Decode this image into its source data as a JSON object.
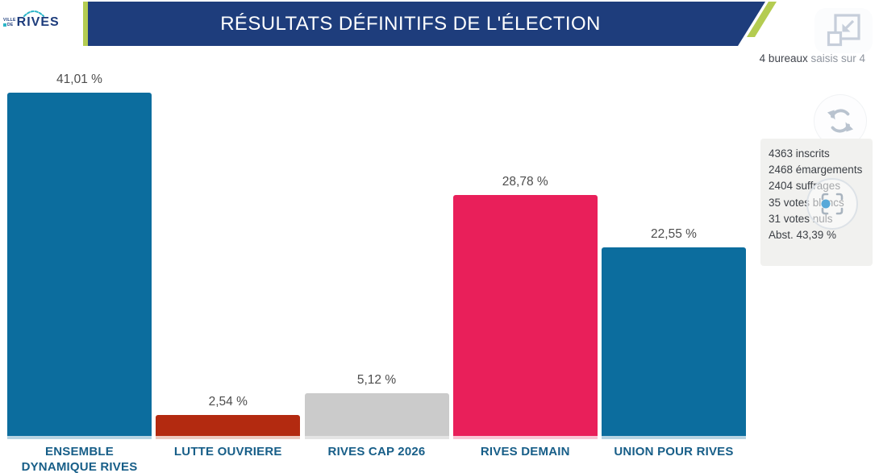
{
  "header": {
    "logo": {
      "ville": "VILLE",
      "de": "DE",
      "city": "RIVES"
    },
    "title": "RÉSULTATS DÉFINITIFS DE L'ÉLECTION",
    "bureaux_count": "4 bureaux",
    "bureaux_rest": " saisis sur 4"
  },
  "side_panel": {
    "stats": [
      "4363 inscrits",
      "2468 émargements",
      "2404 suffrages",
      "35 votes blancs",
      "31 votes nuls",
      "Abst. 43,39 %"
    ]
  },
  "icons": {
    "collapse": "exit-fullscreen-arrow-to-corner",
    "refresh": "sync-circular-arrows",
    "locate": "viewfinder-with-blue-dot"
  },
  "colors": {
    "banner_navy": "#1e3d7c",
    "accent_green": "#b4cc51",
    "category_label_blue": "#175e88",
    "stats_box_bg": "#f1f1ef",
    "icon_gray": "#c6ceda"
  },
  "chart_data": {
    "type": "bar",
    "title": "RÉSULTATS DÉFINITIFS DE L'ÉLECTION",
    "categories": [
      "ENSEMBLE DYNAMIQUE RIVES",
      "LUTTE OUVRIERE",
      "RIVES CAP 2026",
      "RIVES DEMAIN",
      "UNION POUR RIVES"
    ],
    "category_labels": [
      "ENSEMBLE\nDYNAMIQUE RIVES",
      "LUTTE OUVRIERE",
      "RIVES CAP 2026",
      "RIVES DEMAIN",
      "UNION POUR RIVES"
    ],
    "values": [
      41.01,
      2.54,
      5.12,
      28.78,
      22.55
    ],
    "value_labels": [
      "41,01 %",
      "2,54 %",
      "5,12 %",
      "28,78 %",
      "22,55 %"
    ],
    "bar_colors": [
      "#0c6d9e",
      "#b32a10",
      "#cbcbcb",
      "#e91f5a",
      "#0c6d9e"
    ],
    "base_colors": [
      "#b7d3e2",
      "#ecc9bf",
      "#e4e4e4",
      "#f8c6d5",
      "#b7d3e2"
    ],
    "xlabel": "",
    "ylabel": "",
    "ylim": [
      0,
      45
    ],
    "grid": false,
    "legend": false,
    "value_label_position": "above-bar"
  }
}
